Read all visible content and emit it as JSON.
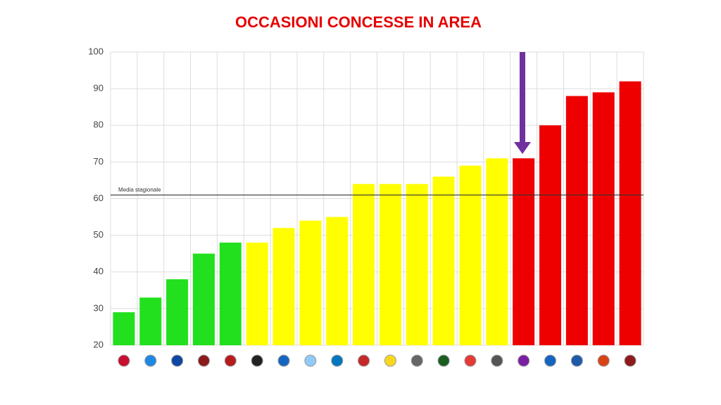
{
  "chart_data": {
    "type": "bar",
    "title": "OCCASIONI CONCESSE IN AREA",
    "categories": [
      null,
      null,
      null,
      null,
      null,
      null,
      null,
      null,
      null,
      null,
      null,
      null,
      null,
      null,
      null,
      null,
      null,
      null,
      null,
      null
    ],
    "values": [
      29,
      33,
      38,
      45,
      48,
      48,
      52,
      54,
      55,
      64,
      64,
      64,
      66,
      69,
      71,
      71,
      80,
      88,
      89,
      92
    ],
    "colors": [
      "#22e01e",
      "#22e01e",
      "#22e01e",
      "#22e01e",
      "#22e01e",
      "#ffff00",
      "#ffff00",
      "#ffff00",
      "#ffff00",
      "#ffff00",
      "#ffff00",
      "#ffff00",
      "#ffff00",
      "#ffff00",
      "#ffff00",
      "#ee0000",
      "#ee0000",
      "#ee0000",
      "#ee0000",
      "#ee0000"
    ],
    "ylim": [
      20,
      100
    ],
    "yticks": [
      20,
      30,
      40,
      50,
      60,
      70,
      80,
      90,
      100
    ],
    "grid": true,
    "reference_line": {
      "value": 61,
      "label": "Media stagionale"
    }
  }
}
